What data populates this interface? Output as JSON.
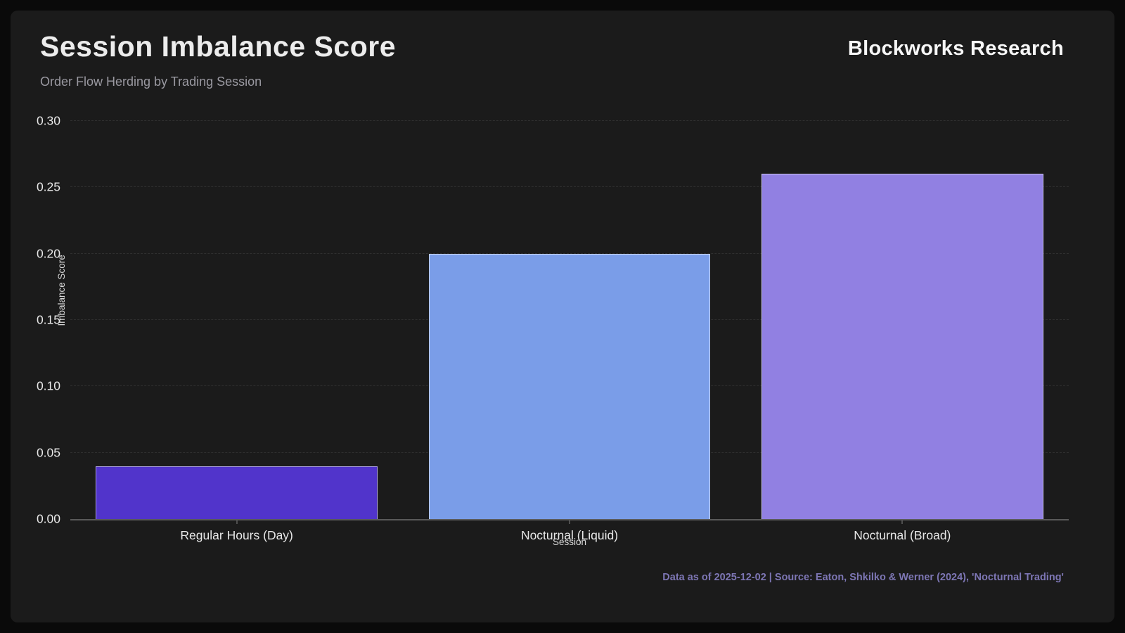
{
  "header": {
    "title": "Session Imbalance Score",
    "subtitle": "Order Flow Herding by Trading Session",
    "brand": "Blockworks Research"
  },
  "chart_data": {
    "type": "bar",
    "title": "Session Imbalance Score",
    "subtitle": "Order Flow Herding by Trading Session",
    "categories": [
      "Regular Hours (Day)",
      "Nocturnal (Liquid)",
      "Nocturnal (Broad)"
    ],
    "values": [
      0.04,
      0.2,
      0.26
    ],
    "bar_colors": [
      "#5134cb",
      "#7a9de8",
      "#9180e2"
    ],
    "xlabel": "Session",
    "ylabel": "Imbalance Score",
    "ylim": [
      0,
      0.3
    ],
    "yticks": [
      0.0,
      0.05,
      0.1,
      0.15,
      0.2,
      0.25,
      0.3
    ],
    "grid": "horizontal dashed, faint",
    "legend": "none",
    "bar_width_fraction": 0.282
  },
  "footer": {
    "note": "Data as of 2025-12-02 | Source: Eaton, Shkilko & Werner (2024), 'Nocturnal Trading'"
  },
  "colors": {
    "page_background": "#0a0a0a",
    "card_background": "#1b1b1b",
    "title_text": "#ececec",
    "subtitle_text": "#9a99a1",
    "axis_text": "#e8e8e8",
    "footer_text": "#7d76b4"
  }
}
